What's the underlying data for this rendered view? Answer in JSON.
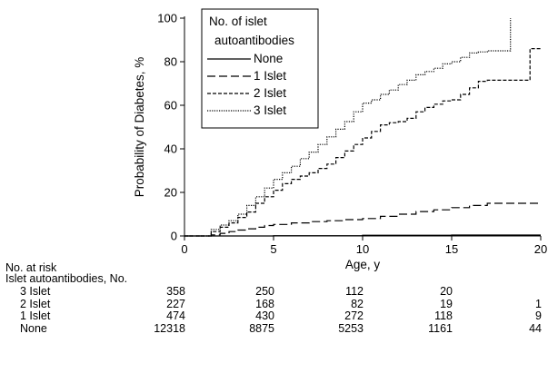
{
  "chart_data": {
    "type": "line",
    "title": "",
    "xlabel": "Age, y",
    "ylabel": "Probability of Diabetes, %",
    "xlim": [
      0,
      20
    ],
    "ylim": [
      0,
      100
    ],
    "xticks": [
      0,
      5,
      10,
      15,
      20
    ],
    "yticks": [
      0,
      20,
      40,
      60,
      80,
      100
    ],
    "grid": false,
    "legend": {
      "title_lines": [
        "No. of islet",
        "autoantibodies"
      ],
      "placement": "top-left inside"
    },
    "series": [
      {
        "name": "None",
        "line_style": "solid",
        "points": [
          [
            0,
            0
          ],
          [
            5,
            0.1
          ],
          [
            10,
            0.3
          ],
          [
            15,
            0.4
          ],
          [
            20,
            0.4
          ]
        ]
      },
      {
        "name": "1 Islet",
        "line_style": "long-dash",
        "points": [
          [
            0,
            0
          ],
          [
            1.2,
            0
          ],
          [
            1.5,
            0.5
          ],
          [
            2,
            1.2
          ],
          [
            2.5,
            2
          ],
          [
            3,
            2.7
          ],
          [
            3.5,
            3.3
          ],
          [
            4,
            4
          ],
          [
            4.5,
            4.8
          ],
          [
            5,
            5.3
          ],
          [
            6,
            6
          ],
          [
            7,
            6.6
          ],
          [
            8,
            7
          ],
          [
            9,
            7.5
          ],
          [
            10,
            8
          ],
          [
            11,
            9
          ],
          [
            12,
            10
          ],
          [
            13,
            11.2
          ],
          [
            14,
            12
          ],
          [
            15,
            13
          ],
          [
            16,
            14
          ],
          [
            17,
            15
          ],
          [
            18,
            15
          ],
          [
            19,
            15
          ],
          [
            20,
            15
          ]
        ]
      },
      {
        "name": "2 Islet",
        "line_style": "short-dash",
        "points": [
          [
            0,
            0
          ],
          [
            1.2,
            0
          ],
          [
            1.5,
            2
          ],
          [
            2,
            4
          ],
          [
            2.5,
            6
          ],
          [
            3,
            8.5
          ],
          [
            3.5,
            11
          ],
          [
            4,
            15
          ],
          [
            4.5,
            18
          ],
          [
            5,
            21
          ],
          [
            5.5,
            24
          ],
          [
            6,
            26
          ],
          [
            6.5,
            27.5
          ],
          [
            7,
            29
          ],
          [
            7.5,
            31
          ],
          [
            8,
            33
          ],
          [
            8.5,
            36
          ],
          [
            9,
            39
          ],
          [
            9.5,
            42
          ],
          [
            10,
            45
          ],
          [
            10.5,
            48
          ],
          [
            11,
            51
          ],
          [
            11.5,
            52
          ],
          [
            12,
            52.5
          ],
          [
            12.5,
            54
          ],
          [
            13,
            57
          ],
          [
            13.5,
            59
          ],
          [
            14,
            60.5
          ],
          [
            14.5,
            62
          ],
          [
            15,
            62.5
          ],
          [
            15.5,
            65
          ],
          [
            16,
            68
          ],
          [
            16.5,
            71
          ],
          [
            17,
            71.5
          ],
          [
            17.5,
            71.5
          ],
          [
            18,
            71.5
          ],
          [
            18.5,
            71.5
          ],
          [
            19,
            71.5
          ],
          [
            19.4,
            71.5
          ],
          [
            19.4,
            86
          ],
          [
            20,
            86
          ]
        ]
      },
      {
        "name": "3 Islet",
        "line_style": "dotted",
        "points": [
          [
            0,
            0
          ],
          [
            1.2,
            0
          ],
          [
            1.5,
            3
          ],
          [
            2,
            5
          ],
          [
            2.5,
            7
          ],
          [
            3,
            10
          ],
          [
            3.5,
            14
          ],
          [
            4,
            18
          ],
          [
            4.5,
            22
          ],
          [
            5,
            26
          ],
          [
            5.5,
            29
          ],
          [
            6,
            32
          ],
          [
            6.5,
            35.5
          ],
          [
            7,
            38.5
          ],
          [
            7.5,
            42
          ],
          [
            8,
            45.5
          ],
          [
            8.5,
            49
          ],
          [
            9,
            52.5
          ],
          [
            9.5,
            57
          ],
          [
            10,
            61
          ],
          [
            10.5,
            62.5
          ],
          [
            11,
            65
          ],
          [
            11.5,
            67
          ],
          [
            12,
            69.5
          ],
          [
            12.5,
            71.5
          ],
          [
            13,
            74
          ],
          [
            13.5,
            75.5
          ],
          [
            14,
            77
          ],
          [
            14.5,
            79
          ],
          [
            15,
            80
          ],
          [
            15.5,
            82
          ],
          [
            16,
            84
          ],
          [
            16.5,
            84.5
          ],
          [
            17,
            85
          ],
          [
            17.5,
            85
          ],
          [
            18,
            85
          ],
          [
            18.3,
            85
          ],
          [
            18.3,
            100
          ]
        ]
      }
    ]
  },
  "risk_table": {
    "header_line1": "No. at risk",
    "header_line2": "Islet autoantibodies, No.",
    "rows": [
      {
        "label": "3 Islet",
        "values": [
          "358",
          "250",
          "112",
          "20",
          ""
        ]
      },
      {
        "label": "2 Islet",
        "values": [
          "227",
          "168",
          "82",
          "19",
          "1"
        ]
      },
      {
        "label": "1 Islet",
        "values": [
          "474",
          "430",
          "272",
          "118",
          "9"
        ]
      },
      {
        "label": "None",
        "values": [
          "12318",
          "8875",
          "5253",
          "1161",
          "44"
        ]
      }
    ]
  },
  "colors": {
    "line": "#000000",
    "background": "#ffffff"
  }
}
